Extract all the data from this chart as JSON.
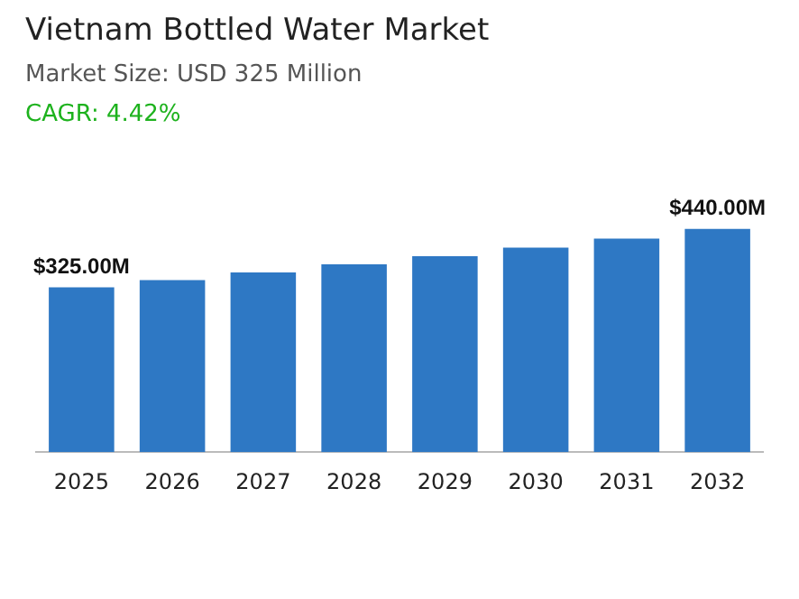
{
  "chart_data": {
    "type": "bar",
    "title": "Vietnam Bottled Water Market",
    "subtitle": "Market Size: USD 325 Million",
    "annotations": [
      "CAGR: 4.42%"
    ],
    "categories": [
      "2025",
      "2026",
      "2027",
      "2028",
      "2029",
      "2030",
      "2031",
      "2032"
    ],
    "values": [
      325,
      339,
      354,
      370,
      386,
      403,
      421,
      440
    ],
    "value_labels": [
      "$325.00M",
      null,
      null,
      null,
      null,
      null,
      null,
      "$440.00M"
    ],
    "color": "#2e78c4",
    "grid": false,
    "legend": false,
    "tick_labels": "x"
  }
}
